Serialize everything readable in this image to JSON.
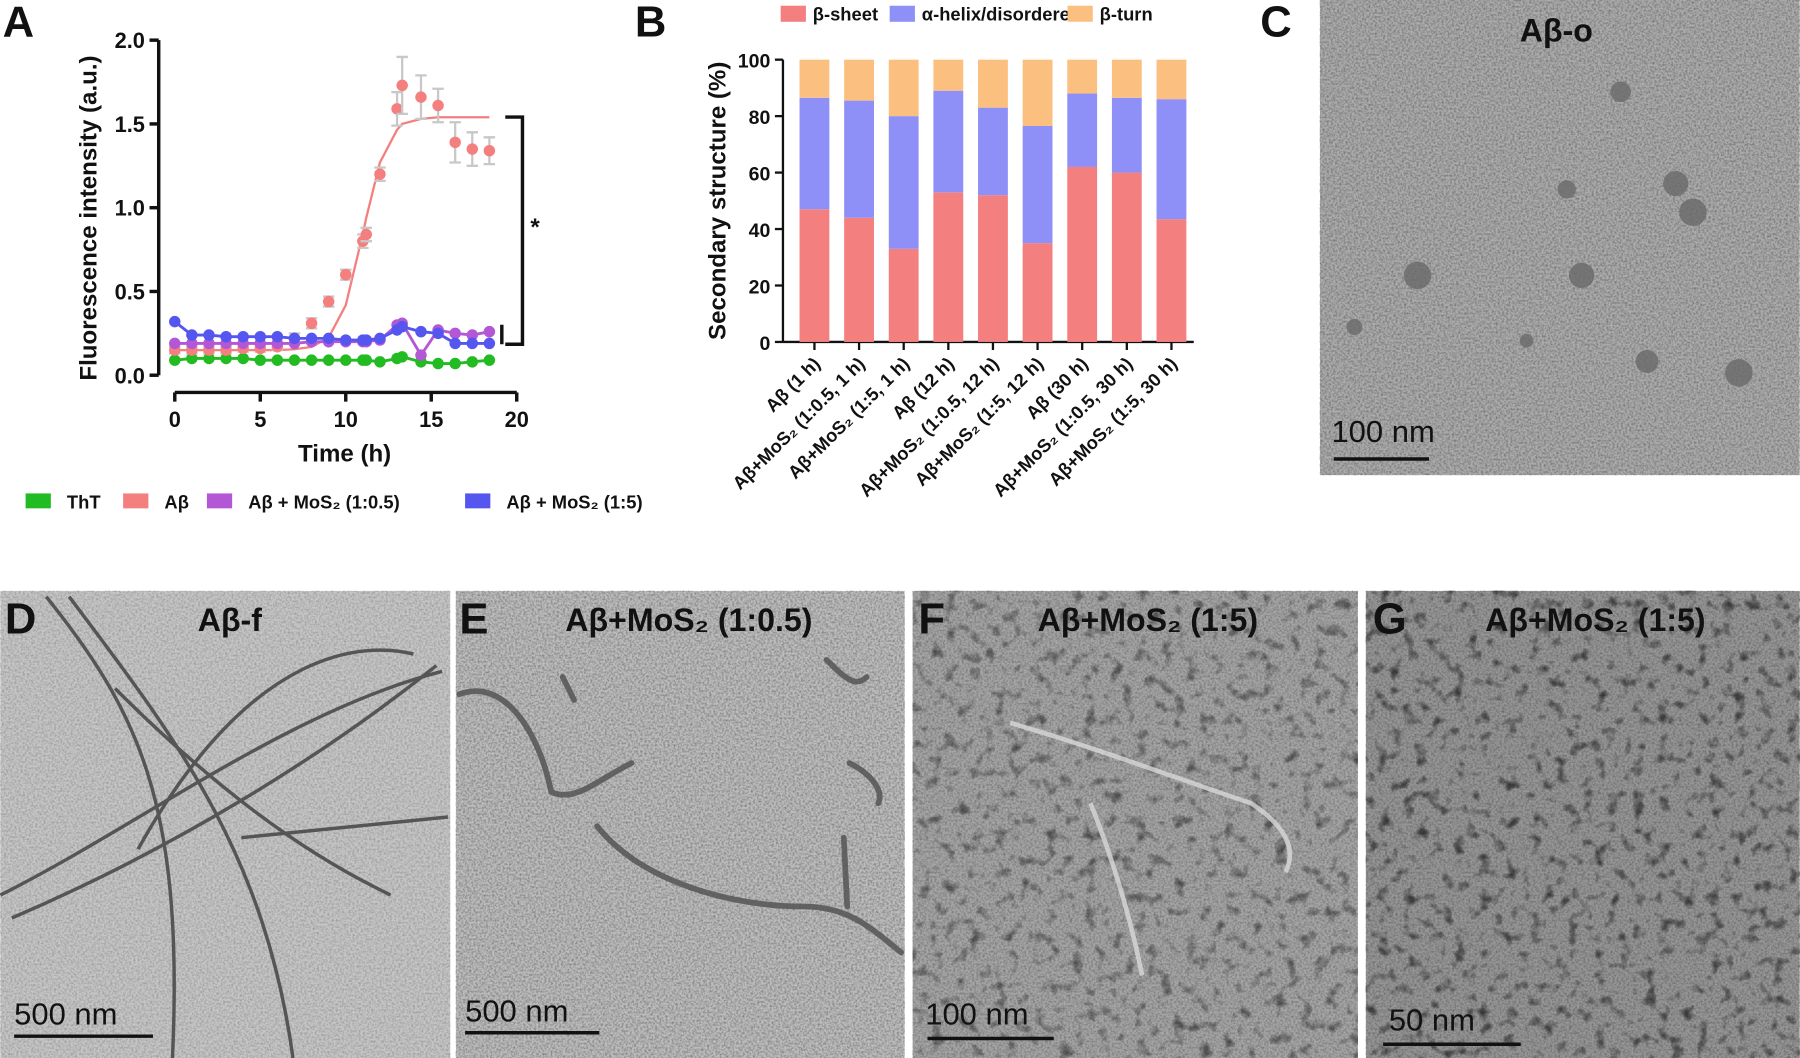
{
  "chart_data": [
    {
      "type": "line",
      "xlabel": "Time (h)",
      "ylabel": "Fluorescence intensity (a.u.)",
      "annotation": "*",
      "xlim": [
        0,
        20
      ],
      "xticks": [
        0,
        5,
        10,
        15,
        20
      ],
      "ylim": [
        0,
        2
      ],
      "yticks": [
        {
          "value": 0,
          "label": "0.0"
        },
        0.5,
        {
          "value": 1,
          "label": "1.0"
        },
        1.5,
        {
          "value": 2,
          "label": "2.0"
        }
      ],
      "x": [
        0,
        1,
        2,
        3,
        4,
        5,
        6,
        7,
        8,
        9,
        10,
        11,
        11.2,
        12,
        13,
        13.3,
        14.4,
        15.4,
        16.4,
        17.4,
        18.4
      ],
      "series": [
        {
          "name": "ThT",
          "color": "#22bb22",
          "values": [
            0.09,
            0.1,
            0.1,
            0.1,
            0.1,
            0.09,
            0.09,
            0.09,
            0.09,
            0.09,
            0.09,
            0.09,
            0.09,
            0.08,
            0.1,
            0.11,
            0.08,
            0.07,
            0.07,
            0.08,
            0.09
          ]
        },
        {
          "name": "Aβ",
          "color": "#f47f7f",
          "values": [
            0.15,
            0.15,
            0.15,
            0.15,
            0.16,
            0.16,
            0.17,
            0.22,
            0.31,
            0.44,
            0.6,
            0.8,
            0.84,
            1.2,
            1.59,
            1.73,
            1.66,
            1.61,
            1.39,
            1.35,
            1.34
          ],
          "errors": [
            0.02,
            0.02,
            0.02,
            0.02,
            0.02,
            0.02,
            0.02,
            0.03,
            0.03,
            0.03,
            0.03,
            0.04,
            0.04,
            0.04,
            0.1,
            0.17,
            0.13,
            0.1,
            0.12,
            0.1,
            0.08
          ],
          "fit": [
            0.15,
            0.15,
            0.15,
            0.15,
            0.15,
            0.15,
            0.15,
            0.155,
            0.169,
            0.225,
            0.418,
            0.845,
            0.94,
            1.27,
            1.465,
            1.5,
            1.53,
            1.54,
            1.54,
            1.54,
            1.54
          ]
        },
        {
          "name": "Aβ + MoS₂ (1:0.5)",
          "color": "#b357d6",
          "values": [
            0.19,
            0.19,
            0.19,
            0.19,
            0.19,
            0.19,
            0.19,
            0.19,
            0.2,
            0.2,
            0.2,
            0.2,
            0.2,
            0.21,
            0.3,
            0.31,
            0.12,
            0.27,
            0.25,
            0.24,
            0.26
          ]
        },
        {
          "name": "Aβ + MoS₂ (1:5)",
          "color": "#5555f0",
          "values": [
            0.32,
            0.24,
            0.24,
            0.23,
            0.23,
            0.23,
            0.23,
            0.22,
            0.22,
            0.22,
            0.21,
            0.21,
            0.21,
            0.22,
            0.27,
            0.29,
            0.26,
            0.25,
            0.19,
            0.19,
            0.19
          ]
        }
      ]
    },
    {
      "type": "bar",
      "stacked": true,
      "ylabel": "Secondary structure (%)",
      "ylim": [
        0,
        100
      ],
      "yticks": [
        0,
        20,
        40,
        60,
        80,
        100
      ],
      "categories": [
        "Aβ (1 h)",
        "Aβ+MoS₂ (1:0.5, 1 h)",
        "Aβ+MoS₂ (1:5, 1 h)",
        "Aβ (12 h)",
        "Aβ+MoS₂ (1:0.5, 12 h)",
        "Aβ+MoS₂ (1:5, 12 h)",
        "Aβ (30 h)",
        "Aβ+MoS₂ (1:0.5, 30 h)",
        "Aβ+MoS₂ (1:5, 30 h)"
      ],
      "series": [
        {
          "name": "β-sheet",
          "color": "#f47f7f",
          "values": [
            47,
            44,
            33,
            53,
            52,
            35,
            62,
            60,
            43.5
          ]
        },
        {
          "name": "α-helix/disordered",
          "color": "#8f8ff8",
          "values": [
            39.5,
            41.5,
            47,
            36,
            31,
            41.5,
            26,
            26.5,
            42.5
          ]
        },
        {
          "name": "β-turn",
          "color": "#fbbf80",
          "values": [
            13.5,
            14.5,
            20,
            11,
            17,
            23.5,
            12,
            13.5,
            14
          ]
        }
      ]
    }
  ],
  "panels": [
    {
      "letter": "A"
    },
    {
      "letter": "B"
    },
    {
      "letter": "C",
      "title": "Aβ-o",
      "scale": "100 nm"
    },
    {
      "letter": "D",
      "title": "Aβ-f",
      "scale": "500 nm"
    },
    {
      "letter": "E",
      "title": "Aβ+MoS₂ (1:0.5)",
      "scale": "500 nm"
    },
    {
      "letter": "F",
      "title": "Aβ+MoS₂ (1:5)",
      "scale": "100 nm"
    },
    {
      "letter": "G",
      "title": "Aβ+MoS₂ (1:5)",
      "scale": "50 nm"
    }
  ]
}
